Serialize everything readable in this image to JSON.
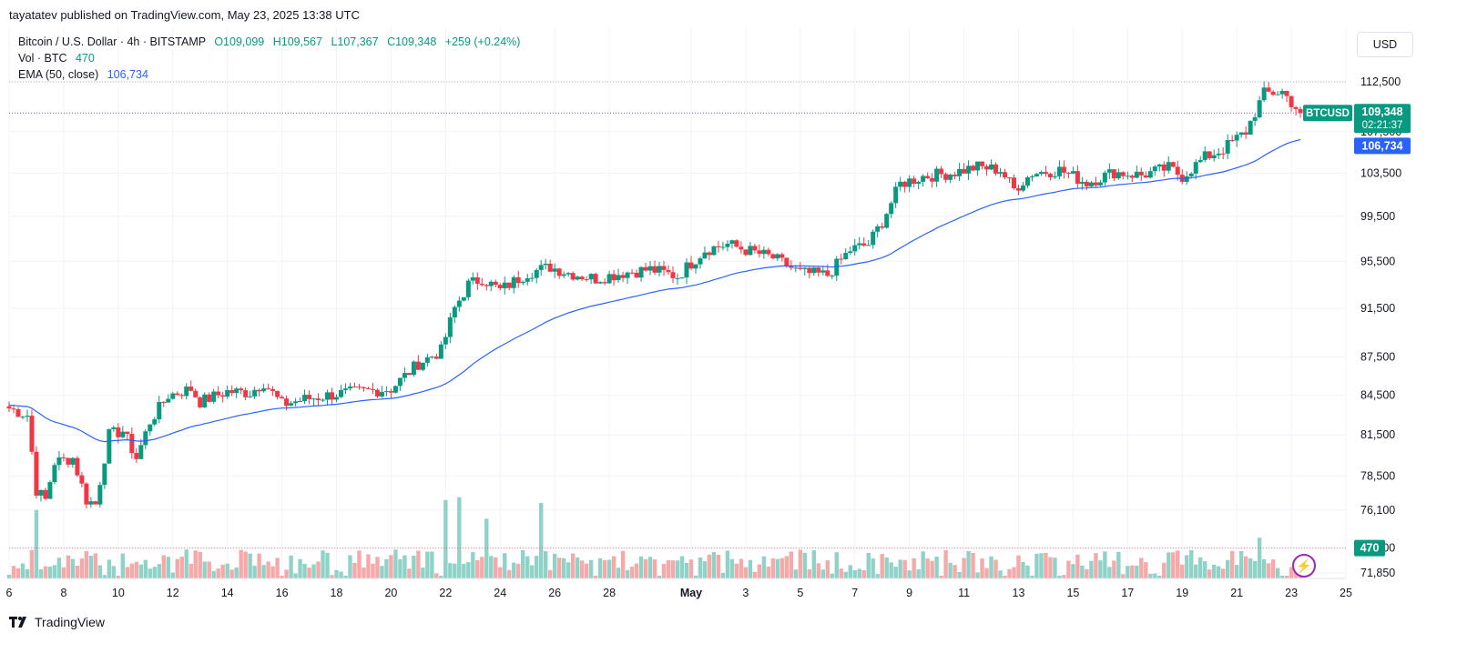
{
  "header": {
    "published": "tayatatev published on TradingView.com, May 23, 2025 13:38 UTC"
  },
  "legend": {
    "symbol": "Bitcoin / U.S. Dollar · 4h · BITSTAMP",
    "open": "O109,099",
    "high": "H109,567",
    "low": "L107,367",
    "close": "C109,348",
    "change": "+259 (+0.24%)",
    "vol_label": "Vol · BTC",
    "vol_value": "470",
    "ema_label": "EMA (50, close)",
    "ema_value": "106,734"
  },
  "currency_button": "USD",
  "footer": {
    "brand": "TradingView"
  },
  "price_labels": {
    "symbol": "BTCUSD",
    "last": "109,348",
    "countdown": "02:21:37",
    "ema": "106,734",
    "volume": "470"
  },
  "colors": {
    "up": "#089981",
    "down": "#f23645",
    "ema": "#2962ff",
    "vol_up": "#8fd3c8",
    "vol_down": "#f5a9a9"
  },
  "chart_data": {
    "type": "candlestick",
    "timeframe": "4h",
    "y_axis": {
      "ticks": [
        112500,
        107500,
        103500,
        99500,
        95500,
        91500,
        87500,
        84500,
        81500,
        78500,
        76100,
        73500,
        71850
      ],
      "tick_labels": [
        "112,500",
        "107,500",
        "103,500",
        "99,500",
        "95,500",
        "91,500",
        "87,500",
        "84,500",
        "81,500",
        "78,500",
        "76,100",
        "73,500",
        "71,850"
      ],
      "scale": "log"
    },
    "x_axis": {
      "start": "2025-04-06",
      "end": "2025-05-25",
      "ticks": [
        {
          "label": "6",
          "date": "2025-04-06"
        },
        {
          "label": "8",
          "date": "2025-04-08"
        },
        {
          "label": "10",
          "date": "2025-04-10"
        },
        {
          "label": "12",
          "date": "2025-04-12"
        },
        {
          "label": "14",
          "date": "2025-04-14"
        },
        {
          "label": "16",
          "date": "2025-04-16"
        },
        {
          "label": "18",
          "date": "2025-04-18"
        },
        {
          "label": "20",
          "date": "2025-04-20"
        },
        {
          "label": "22",
          "date": "2025-04-22"
        },
        {
          "label": "24",
          "date": "2025-04-24"
        },
        {
          "label": "26",
          "date": "2025-04-26"
        },
        {
          "label": "28",
          "date": "2025-04-28"
        },
        {
          "label": "May",
          "date": "2025-05-01",
          "bold": true
        },
        {
          "label": "3",
          "date": "2025-05-03"
        },
        {
          "label": "5",
          "date": "2025-05-05"
        },
        {
          "label": "7",
          "date": "2025-05-07"
        },
        {
          "label": "9",
          "date": "2025-05-09"
        },
        {
          "label": "11",
          "date": "2025-05-11"
        },
        {
          "label": "13",
          "date": "2025-05-13"
        },
        {
          "label": "15",
          "date": "2025-05-15"
        },
        {
          "label": "17",
          "date": "2025-05-17"
        },
        {
          "label": "19",
          "date": "2025-05-19"
        },
        {
          "label": "21",
          "date": "2025-05-21"
        },
        {
          "label": "23",
          "date": "2025-05-23"
        },
        {
          "label": "25",
          "date": "2025-05-25"
        }
      ]
    },
    "close_path": [
      [
        "2025-04-06 00:00",
        83500
      ],
      [
        "2025-04-06 16:00",
        83000
      ],
      [
        "2025-04-07 00:00",
        77500
      ],
      [
        "2025-04-07 08:00",
        76800
      ],
      [
        "2025-04-07 16:00",
        79500
      ],
      [
        "2025-04-08 08:00",
        79800
      ],
      [
        "2025-04-08 20:00",
        76800
      ],
      [
        "2025-04-09 04:00",
        76500
      ],
      [
        "2025-04-09 16:00",
        81500
      ],
      [
        "2025-04-10 04:00",
        81800
      ],
      [
        "2025-04-10 16:00",
        79800
      ],
      [
        "2025-04-11 04:00",
        82500
      ],
      [
        "2025-04-11 20:00",
        84500
      ],
      [
        "2025-04-12 16:00",
        85000
      ],
      [
        "2025-04-13 00:00",
        84000
      ],
      [
        "2025-04-14 00:00",
        84800
      ],
      [
        "2025-04-14 20:00",
        84700
      ],
      [
        "2025-04-15 08:00",
        85500
      ],
      [
        "2025-04-16 00:00",
        83800
      ],
      [
        "2025-04-16 20:00",
        84200
      ],
      [
        "2025-04-18 00:00",
        84600
      ],
      [
        "2025-04-19 00:00",
        84800
      ],
      [
        "2025-04-20 00:00",
        85000
      ],
      [
        "2025-04-21 00:00",
        87000
      ],
      [
        "2025-04-21 20:00",
        88000
      ],
      [
        "2025-04-22 08:00",
        91500
      ],
      [
        "2025-04-22 20:00",
        93500
      ],
      [
        "2025-04-23 08:00",
        94000
      ],
      [
        "2025-04-24 00:00",
        93000
      ],
      [
        "2025-04-25 00:00",
        94500
      ],
      [
        "2025-04-25 20:00",
        95000
      ],
      [
        "2025-04-26 12:00",
        94500
      ],
      [
        "2025-04-27 12:00",
        94000
      ],
      [
        "2025-04-28 12:00",
        94500
      ],
      [
        "2025-04-29 12:00",
        94800
      ],
      [
        "2025-04-30 12:00",
        94200
      ],
      [
        "2025-05-01 12:00",
        96500
      ],
      [
        "2025-05-02 08:00",
        97000
      ],
      [
        "2025-05-03 00:00",
        96500
      ],
      [
        "2025-05-04 00:00",
        95800
      ],
      [
        "2025-05-05 00:00",
        94500
      ],
      [
        "2025-05-06 00:00",
        94300
      ],
      [
        "2025-05-06 20:00",
        96500
      ],
      [
        "2025-05-07 12:00",
        97000
      ],
      [
        "2025-05-08 00:00",
        99000
      ],
      [
        "2025-05-08 16:00",
        102500
      ],
      [
        "2025-05-09 12:00",
        103200
      ],
      [
        "2025-05-10 12:00",
        103500
      ],
      [
        "2025-05-11 12:00",
        104100
      ],
      [
        "2025-05-12 08:00",
        103800
      ],
      [
        "2025-05-12 20:00",
        102000
      ],
      [
        "2025-05-13 12:00",
        103500
      ],
      [
        "2025-05-14 12:00",
        103800
      ],
      [
        "2025-05-15 12:00",
        102600
      ],
      [
        "2025-05-16 12:00",
        103600
      ],
      [
        "2025-05-17 12:00",
        103300
      ],
      [
        "2025-05-18 12:00",
        104000
      ],
      [
        "2025-05-19 00:00",
        103200
      ],
      [
        "2025-05-19 20:00",
        105000
      ],
      [
        "2025-05-20 12:00",
        105800
      ],
      [
        "2025-05-21 08:00",
        107500
      ],
      [
        "2025-05-22 00:00",
        111300
      ],
      [
        "2025-05-22 16:00",
        111500
      ],
      [
        "2025-05-23 08:00",
        109348
      ]
    ],
    "volume_notable": [
      [
        "2025-04-07 00:00",
        76100
      ],
      [
        "2025-04-22 00:00",
        76800
      ],
      [
        "2025-04-22 12:00",
        77000
      ],
      [
        "2025-04-23 12:00",
        75500
      ],
      [
        "2025-04-25 12:00",
        76600
      ],
      [
        "2025-05-21 20:00",
        74200
      ]
    ],
    "ema": {
      "name": "EMA (50, close)",
      "last": 106734
    },
    "last_price": 109348
  }
}
